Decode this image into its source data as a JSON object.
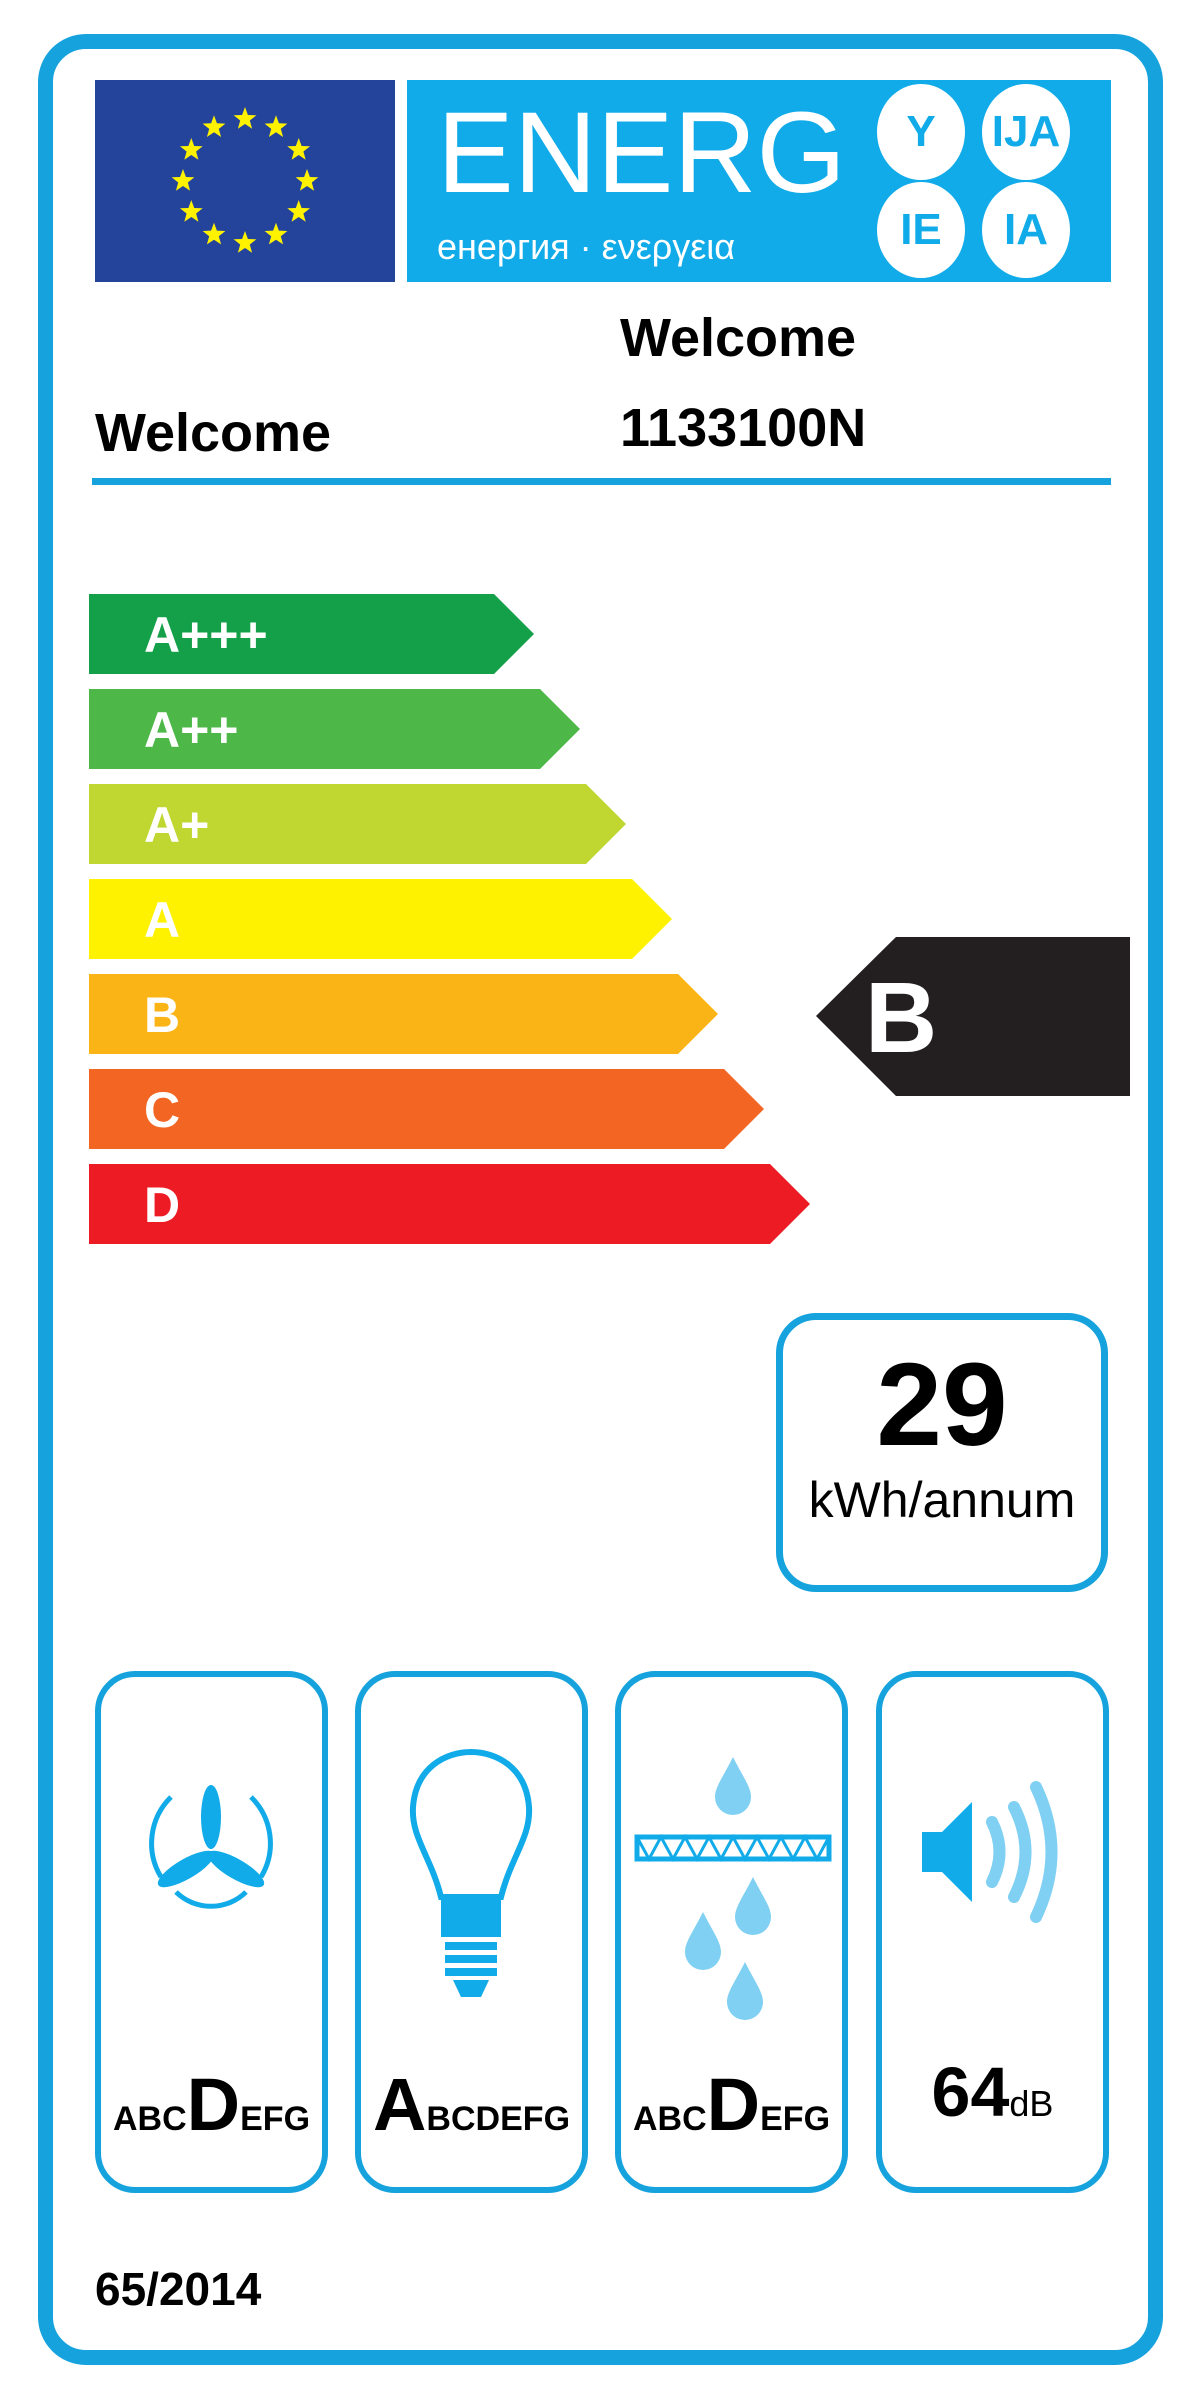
{
  "header": {
    "energy_word": "ENERG",
    "energy_subtitle": "енергия · ενεργεια",
    "suffixes": [
      "Y",
      "IJA",
      "IE",
      "IA"
    ]
  },
  "supplier": "Welcome",
  "model": {
    "brand": "Welcome",
    "identifier": "1133100N"
  },
  "efficiency_scale": {
    "classes": [
      {
        "label": "A+++",
        "color": "#13a049"
      },
      {
        "label": "A++",
        "color": "#4db848"
      },
      {
        "label": "A+",
        "color": "#bfd730"
      },
      {
        "label": "A",
        "color": "#fff200"
      },
      {
        "label": "B",
        "color": "#fbb416"
      },
      {
        "label": "C",
        "color": "#f26522"
      },
      {
        "label": "D",
        "color": "#ed1c24"
      }
    ],
    "rating": "B",
    "rating_color": "#231f20"
  },
  "consumption": {
    "value": "29",
    "unit": "kWh/annum"
  },
  "indicators": [
    {
      "icon": "fan-icon",
      "classes": [
        "A",
        "B",
        "C",
        "D",
        "E",
        "F",
        "G"
      ],
      "selected": "D"
    },
    {
      "icon": "light-bulb-icon",
      "classes": [
        "A",
        "B",
        "C",
        "D",
        "E",
        "F",
        "G"
      ],
      "selected": "A"
    },
    {
      "icon": "grease-filter-icon",
      "classes": [
        "A",
        "B",
        "C",
        "D",
        "E",
        "F",
        "G"
      ],
      "selected": "D"
    },
    {
      "icon": "speaker-icon",
      "value": "64",
      "unit": "dB"
    }
  ],
  "regulation": "65/2014",
  "colors": {
    "frame": "#16a3dd",
    "banner": "#10abe8",
    "flag": "#24439a",
    "stars": "#fff200"
  }
}
